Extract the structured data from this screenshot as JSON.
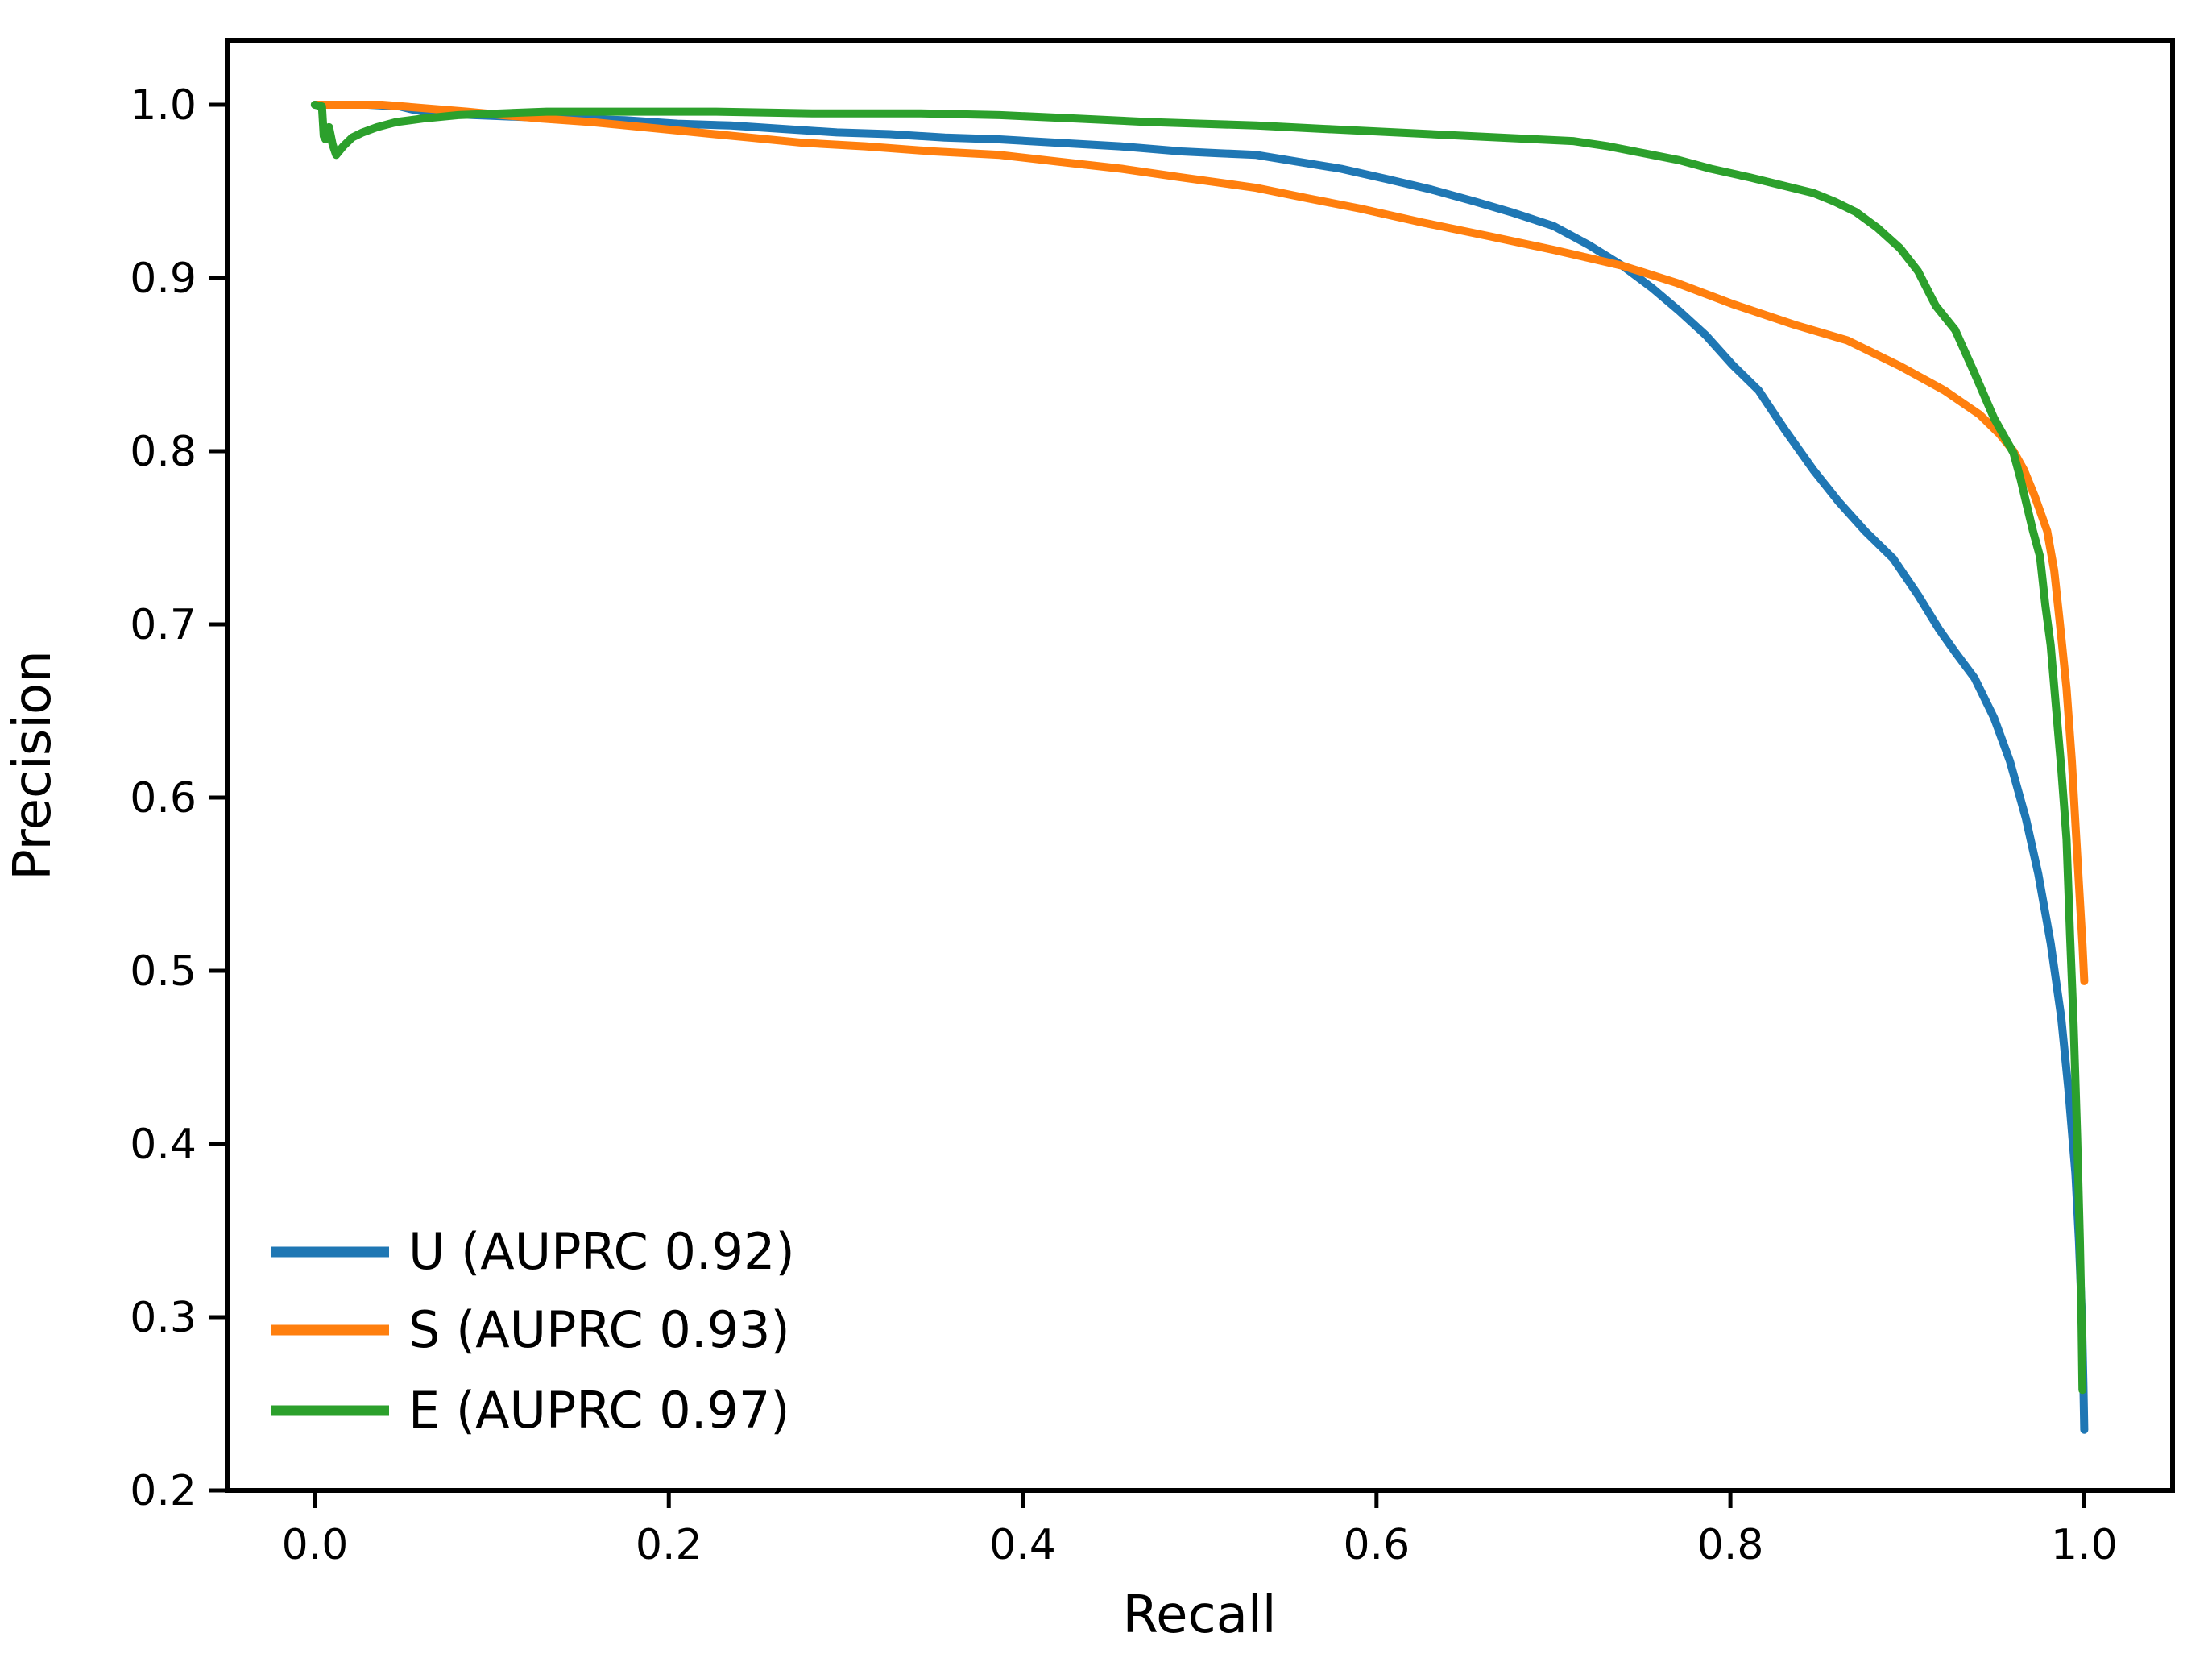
{
  "chart_data": {
    "type": "line",
    "title": "",
    "xlabel": "Recall",
    "ylabel": "Precision",
    "xlim": [
      -0.0496,
      1.0499
    ],
    "ylim": [
      0.2,
      1.0372
    ],
    "grid": false,
    "background_color": "#ffffff",
    "spine_color": "#000000",
    "x_ticks": [
      {
        "value": 0.0,
        "label": "0.0"
      },
      {
        "value": 0.2,
        "label": "0.2"
      },
      {
        "value": 0.4,
        "label": "0.4"
      },
      {
        "value": 0.6,
        "label": "0.6"
      },
      {
        "value": 0.8,
        "label": "0.8"
      },
      {
        "value": 1.0,
        "label": "1.0"
      }
    ],
    "y_ticks": [
      {
        "value": 0.2,
        "label": "0.2"
      },
      {
        "value": 0.3,
        "label": "0.3"
      },
      {
        "value": 0.4,
        "label": "0.4"
      },
      {
        "value": 0.5,
        "label": "0.5"
      },
      {
        "value": 0.6,
        "label": "0.6"
      },
      {
        "value": 0.7,
        "label": "0.7"
      },
      {
        "value": 0.8,
        "label": "0.8"
      },
      {
        "value": 0.9,
        "label": "0.9"
      },
      {
        "value": 1.0,
        "label": "1.0"
      }
    ],
    "legend": {
      "position": "lower-left",
      "frame": false,
      "entries": [
        "U (AUPRC 0.92)",
        "S (AUPRC 0.93)",
        "E (AUPRC 0.97)"
      ]
    },
    "series": [
      {
        "name": "U",
        "legend_label": "U (AUPRC 0.92)",
        "auprc": 0.92,
        "color": "#1f77b4",
        "points": [
          [
            0.0,
            1.0
          ],
          [
            0.03,
            1.0
          ],
          [
            0.048,
            0.999
          ],
          [
            0.056,
            0.997
          ],
          [
            0.07,
            0.995
          ],
          [
            0.09,
            0.994
          ],
          [
            0.115,
            0.993
          ],
          [
            0.145,
            0.992
          ],
          [
            0.175,
            0.991
          ],
          [
            0.205,
            0.989
          ],
          [
            0.235,
            0.988
          ],
          [
            0.265,
            0.986
          ],
          [
            0.295,
            0.984
          ],
          [
            0.325,
            0.983
          ],
          [
            0.356,
            0.981
          ],
          [
            0.387,
            0.98
          ],
          [
            0.42,
            0.978
          ],
          [
            0.455,
            0.976
          ],
          [
            0.49,
            0.973
          ],
          [
            0.511,
            0.972
          ],
          [
            0.532,
            0.971
          ],
          [
            0.556,
            0.967
          ],
          [
            0.58,
            0.963
          ],
          [
            0.606,
            0.957
          ],
          [
            0.631,
            0.951
          ],
          [
            0.656,
            0.944
          ],
          [
            0.676,
            0.938
          ],
          [
            0.7,
            0.93
          ],
          [
            0.72,
            0.919
          ],
          [
            0.739,
            0.907
          ],
          [
            0.756,
            0.894
          ],
          [
            0.771,
            0.881
          ],
          [
            0.786,
            0.867
          ],
          [
            0.801,
            0.85
          ],
          [
            0.816,
            0.835
          ],
          [
            0.831,
            0.812
          ],
          [
            0.847,
            0.789
          ],
          [
            0.861,
            0.771
          ],
          [
            0.876,
            0.754
          ],
          [
            0.892,
            0.738
          ],
          [
            0.906,
            0.717
          ],
          [
            0.918,
            0.697
          ],
          [
            0.927,
            0.684
          ],
          [
            0.938,
            0.669
          ],
          [
            0.949,
            0.646
          ],
          [
            0.958,
            0.621
          ],
          [
            0.967,
            0.588
          ],
          [
            0.974,
            0.556
          ],
          [
            0.981,
            0.516
          ],
          [
            0.987,
            0.473
          ],
          [
            0.991,
            0.432
          ],
          [
            0.995,
            0.383
          ],
          [
            0.997,
            0.344
          ],
          [
            0.9987,
            0.3
          ],
          [
            0.9995,
            0.262
          ],
          [
            1.0,
            0.235
          ]
        ]
      },
      {
        "name": "S",
        "legend_label": "S (AUPRC 0.93)",
        "auprc": 0.93,
        "color": "#ff7f0e",
        "points": [
          [
            0.0,
            1.0
          ],
          [
            0.038,
            1.0
          ],
          [
            0.062,
            0.998
          ],
          [
            0.086,
            0.996
          ],
          [
            0.106,
            0.994
          ],
          [
            0.128,
            0.992
          ],
          [
            0.156,
            0.99
          ],
          [
            0.186,
            0.987
          ],
          [
            0.216,
            0.984
          ],
          [
            0.246,
            0.981
          ],
          [
            0.276,
            0.978
          ],
          [
            0.311,
            0.976
          ],
          [
            0.35,
            0.973
          ],
          [
            0.387,
            0.971
          ],
          [
            0.421,
            0.967
          ],
          [
            0.456,
            0.963
          ],
          [
            0.49,
            0.958
          ],
          [
            0.511,
            0.955
          ],
          [
            0.532,
            0.952
          ],
          [
            0.561,
            0.946
          ],
          [
            0.591,
            0.94
          ],
          [
            0.626,
            0.932
          ],
          [
            0.664,
            0.924
          ],
          [
            0.701,
            0.916
          ],
          [
            0.739,
            0.907
          ],
          [
            0.77,
            0.897
          ],
          [
            0.801,
            0.885
          ],
          [
            0.836,
            0.873
          ],
          [
            0.866,
            0.864
          ],
          [
            0.896,
            0.849
          ],
          [
            0.921,
            0.835
          ],
          [
            0.941,
            0.821
          ],
          [
            0.952,
            0.81
          ],
          [
            0.96,
            0.8
          ],
          [
            0.966,
            0.789
          ],
          [
            0.972,
            0.774
          ],
          [
            0.979,
            0.754
          ],
          [
            0.983,
            0.731
          ],
          [
            0.986,
            0.703
          ],
          [
            0.99,
            0.663
          ],
          [
            0.993,
            0.621
          ],
          [
            0.995,
            0.585
          ],
          [
            0.997,
            0.55
          ],
          [
            0.999,
            0.515
          ],
          [
            1.0,
            0.494
          ]
        ]
      },
      {
        "name": "E",
        "legend_label": "E (AUPRC 0.97)",
        "auprc": 0.97,
        "color": "#2ca02c",
        "points": [
          [
            0.0,
            1.0
          ],
          [
            0.004,
            0.999
          ],
          [
            0.005,
            0.982
          ],
          [
            0.006,
            0.98
          ],
          [
            0.008,
            0.987
          ],
          [
            0.01,
            0.977
          ],
          [
            0.012,
            0.971
          ],
          [
            0.016,
            0.976
          ],
          [
            0.021,
            0.981
          ],
          [
            0.027,
            0.984
          ],
          [
            0.035,
            0.987
          ],
          [
            0.046,
            0.99
          ],
          [
            0.061,
            0.992
          ],
          [
            0.081,
            0.994
          ],
          [
            0.106,
            0.995
          ],
          [
            0.131,
            0.996
          ],
          [
            0.175,
            0.996
          ],
          [
            0.225,
            0.996
          ],
          [
            0.281,
            0.995
          ],
          [
            0.341,
            0.995
          ],
          [
            0.387,
            0.994
          ],
          [
            0.431,
            0.992
          ],
          [
            0.471,
            0.99
          ],
          [
            0.501,
            0.989
          ],
          [
            0.532,
            0.988
          ],
          [
            0.571,
            0.986
          ],
          [
            0.611,
            0.984
          ],
          [
            0.651,
            0.982
          ],
          [
            0.691,
            0.98
          ],
          [
            0.711,
            0.979
          ],
          [
            0.731,
            0.976
          ],
          [
            0.751,
            0.972
          ],
          [
            0.771,
            0.968
          ],
          [
            0.789,
            0.963
          ],
          [
            0.811,
            0.958
          ],
          [
            0.831,
            0.953
          ],
          [
            0.847,
            0.949
          ],
          [
            0.859,
            0.944
          ],
          [
            0.871,
            0.938
          ],
          [
            0.883,
            0.929
          ],
          [
            0.896,
            0.917
          ],
          [
            0.906,
            0.904
          ],
          [
            0.916,
            0.884
          ],
          [
            0.927,
            0.87
          ],
          [
            0.938,
            0.845
          ],
          [
            0.949,
            0.819
          ],
          [
            0.96,
            0.799
          ],
          [
            0.964,
            0.784
          ],
          [
            0.967,
            0.771
          ],
          [
            0.971,
            0.754
          ],
          [
            0.975,
            0.739
          ],
          [
            0.978,
            0.711
          ],
          [
            0.981,
            0.688
          ],
          [
            0.984,
            0.652
          ],
          [
            0.987,
            0.617
          ],
          [
            0.99,
            0.576
          ],
          [
            0.992,
            0.52
          ],
          [
            0.994,
            0.469
          ],
          [
            0.996,
            0.404
          ],
          [
            0.9975,
            0.345
          ],
          [
            0.9985,
            0.295
          ],
          [
            0.999,
            0.258
          ]
        ]
      }
    ]
  }
}
